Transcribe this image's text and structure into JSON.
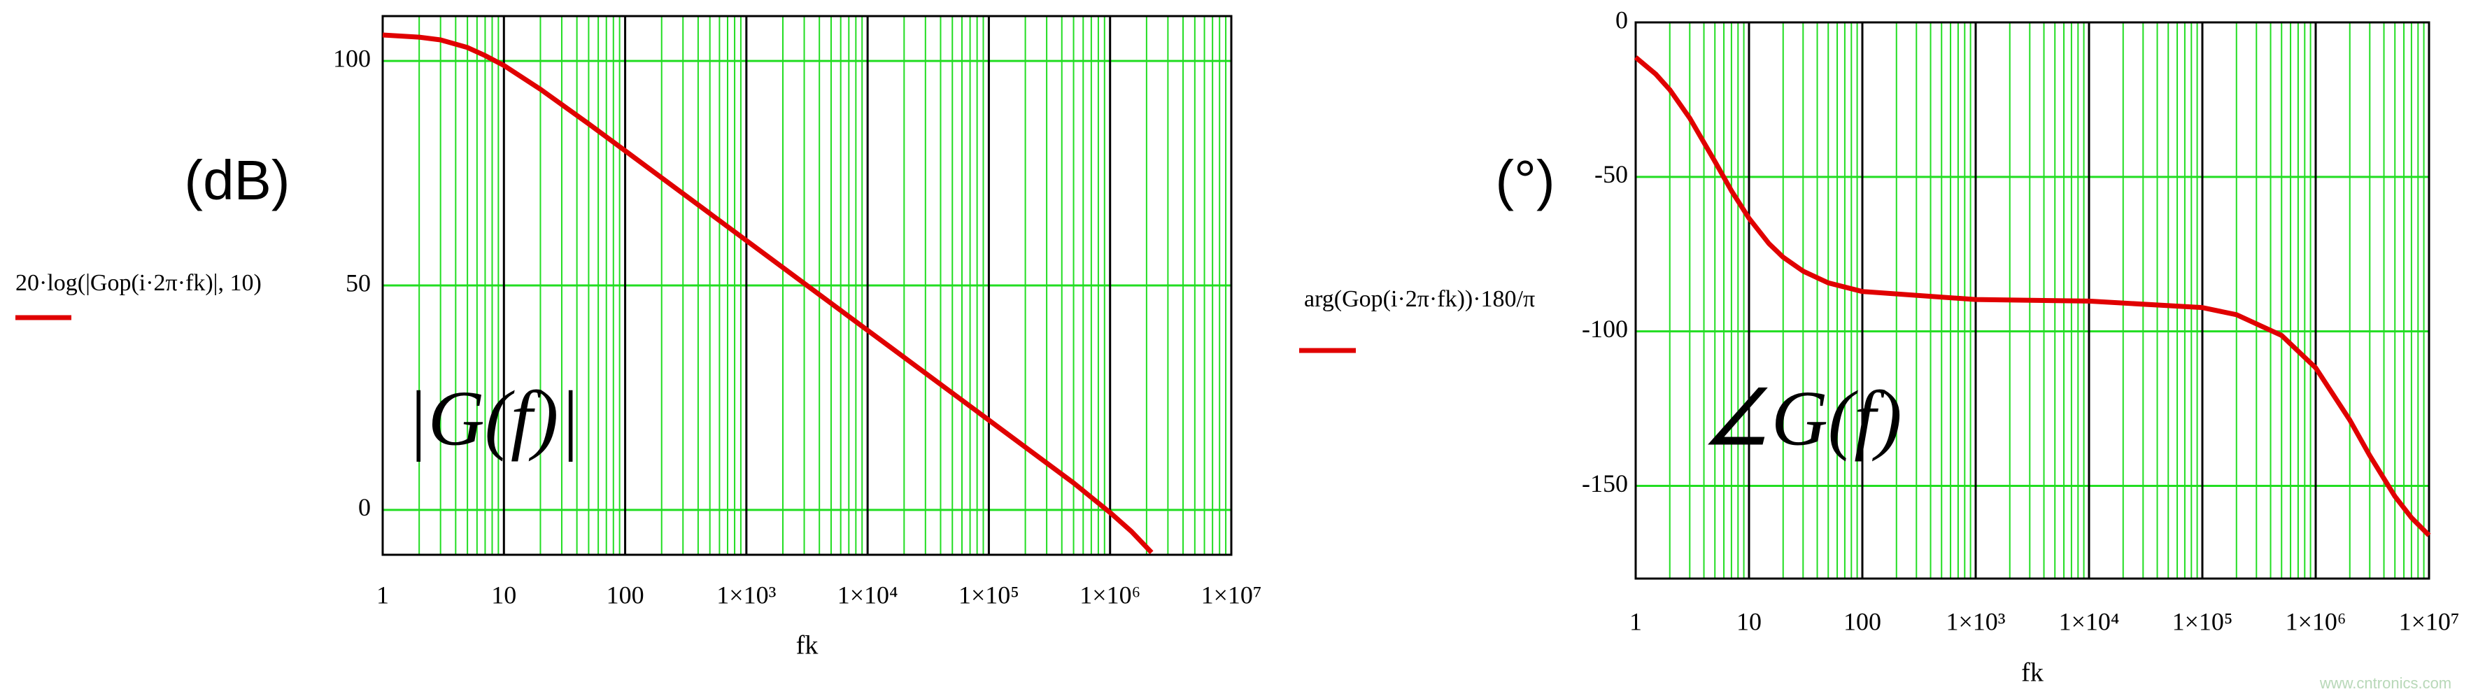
{
  "chart_data": [
    {
      "type": "line",
      "y_label": "(dB)",
      "x_label": "fk",
      "annotation": "|G(f)|",
      "xscale": "log",
      "xlim": [
        1,
        10000000
      ],
      "ylim": [
        -10,
        110
      ],
      "xticks": [
        1,
        10,
        100,
        {
          "value": 1000,
          "label": "1×10³"
        },
        {
          "value": 10000,
          "label": "1×10⁴"
        },
        {
          "value": 100000,
          "label": "1×10⁵"
        },
        {
          "value": 1000000,
          "label": "1×10⁶"
        },
        {
          "value": 10000000,
          "label": "1×10⁷"
        }
      ],
      "yticks": [
        0,
        50,
        100
      ],
      "grid": true,
      "minor_grid": true,
      "grid_color": "#22dd22",
      "decade_color": "#000000",
      "x": [
        1,
        2,
        3,
        5,
        7,
        10,
        20,
        50,
        100,
        1000,
        10000,
        100000,
        500000,
        1000000,
        1500000,
        2200000
      ],
      "series": [
        {
          "name": "20·log(|Gop(i·2π·fk)|, 10)",
          "color": "#e00000",
          "values": [
            105.8,
            105.3,
            104.7,
            103,
            101.2,
            99,
            93.7,
            86,
            80,
            60,
            40,
            20,
            6,
            -0.6,
            -4.8,
            -9.5
          ]
        }
      ]
    },
    {
      "type": "line",
      "y_label": "(°)",
      "x_label": "fk",
      "annotation": "∠G(f)",
      "xscale": "log",
      "xlim": [
        1,
        10000000
      ],
      "ylim": [
        -180,
        0
      ],
      "xticks": [
        1,
        10,
        100,
        {
          "value": 1000,
          "label": "1×10³"
        },
        {
          "value": 10000,
          "label": "1×10⁴"
        },
        {
          "value": 100000,
          "label": "1×10⁵"
        },
        {
          "value": 1000000,
          "label": "1×10⁶"
        },
        {
          "value": 10000000,
          "label": "1×10⁷"
        }
      ],
      "yticks": [
        0,
        -50,
        -100,
        -150
      ],
      "grid": true,
      "minor_grid": true,
      "grid_color": "#22dd22",
      "decade_color": "#000000",
      "x": [
        1,
        1.5,
        2,
        3,
        5,
        7,
        10,
        15,
        20,
        30,
        50,
        100,
        1000,
        10000,
        100000,
        200000,
        500000,
        1000000,
        2000000,
        3000000,
        5000000,
        7000000,
        10000000
      ],
      "series": [
        {
          "name": "arg(Gop(i·2π·fk))·180/π",
          "color": "#e00000",
          "values": [
            -11.3,
            -16.7,
            -21.8,
            -31.0,
            -45,
            -54.5,
            -63.4,
            -71.6,
            -76.0,
            -80.5,
            -84.3,
            -87.1,
            -89.7,
            -90.2,
            -92.3,
            -94.6,
            -101.3,
            -111.8,
            -128.7,
            -140.2,
            -153.4,
            -160.3,
            -166.0
          ]
        }
      ]
    }
  ],
  "watermark": "www.cntronics.com"
}
